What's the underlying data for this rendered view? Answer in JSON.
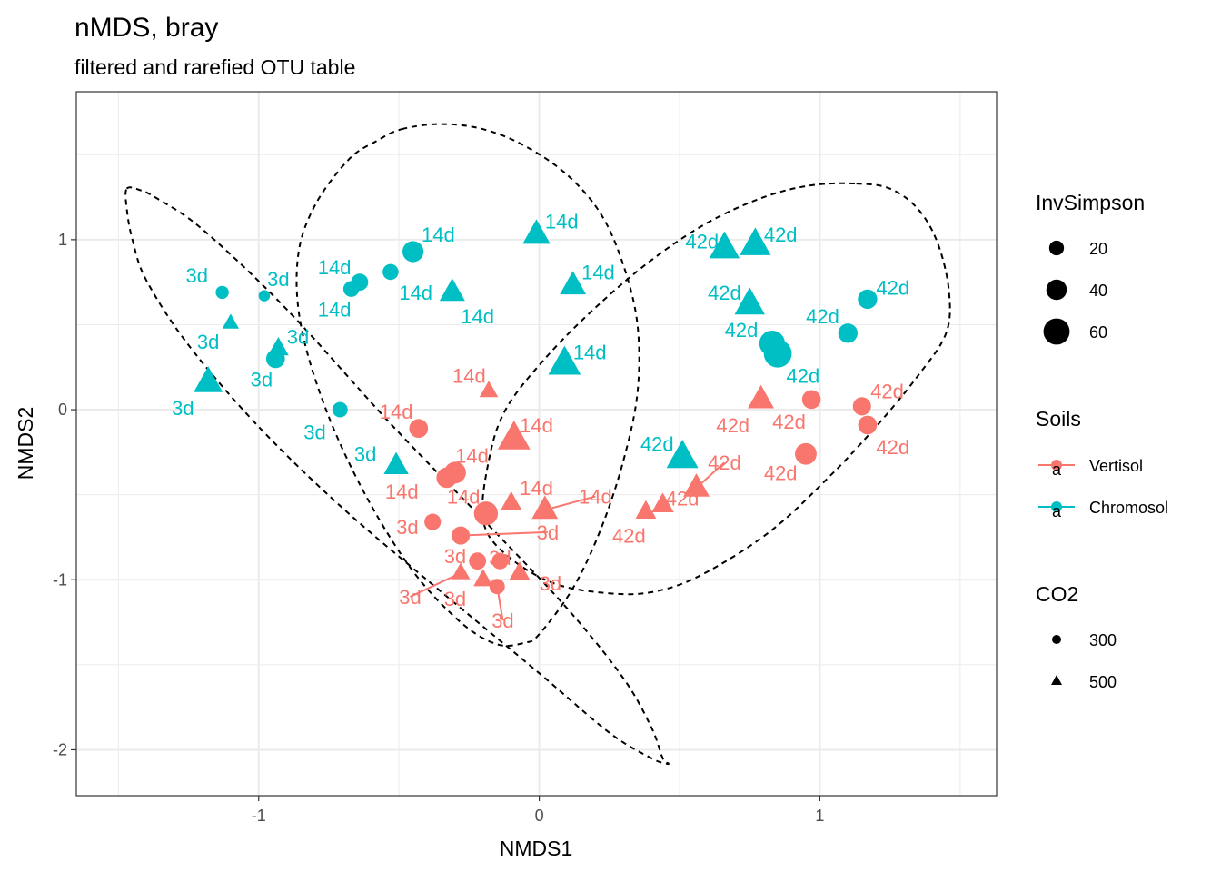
{
  "chart_data": {
    "type": "scatter",
    "title": "nMDS, bray",
    "subtitle": "filtered and rarefied OTU table",
    "xlabel": "NMDS1",
    "ylabel": "NMDS2",
    "xlim": [
      -1.65,
      1.63
    ],
    "ylim": [
      -2.27,
      1.87
    ],
    "xticks": [
      -1,
      0,
      1
    ],
    "yticks": [
      1,
      0,
      -1,
      -2
    ],
    "x_minor": [
      -1.5,
      -0.5,
      0.5,
      1.5
    ],
    "y_minor": [
      1.5,
      0.5,
      -0.5,
      -1.5
    ],
    "grid": true,
    "colors": {
      "Vertisol": "#F8766D",
      "Chromosol": "#00BFC4"
    },
    "legend": {
      "placement": "right",
      "invsimpson": {
        "title": "InvSimpson",
        "labels": [
          "20",
          "40",
          "60"
        ],
        "values": [
          20,
          40,
          60
        ]
      },
      "soils": {
        "title": "Soils",
        "labels": [
          "Vertisol",
          "Chromosol"
        ],
        "key_glyph": "a"
      },
      "co2": {
        "title": "CO2",
        "labels": [
          "300",
          "500"
        ],
        "shapes": [
          "circle",
          "triangle"
        ]
      }
    },
    "points": [
      {
        "x": -1.13,
        "y": 0.69,
        "soil": "Chromosol",
        "co2": "300",
        "inv": 14,
        "label": "3d",
        "lx": -1.22,
        "ly": 0.79
      },
      {
        "x": -0.98,
        "y": 0.67,
        "soil": "Chromosol",
        "co2": "300",
        "inv": 8,
        "label": "3d",
        "lx": -0.93,
        "ly": 0.77
      },
      {
        "x": -1.1,
        "y": 0.51,
        "soil": "Chromosol",
        "co2": "500",
        "inv": 16,
        "label": "3d",
        "lx": -1.18,
        "ly": 0.4
      },
      {
        "x": -1.18,
        "y": 0.16,
        "soil": "Chromosol",
        "co2": "500",
        "inv": 52,
        "label": "3d",
        "lx": -1.27,
        "ly": 0.01
      },
      {
        "x": -0.94,
        "y": 0.3,
        "soil": "Chromosol",
        "co2": "300",
        "inv": 34,
        "label": "3d",
        "lx": -0.86,
        "ly": 0.43
      },
      {
        "x": -0.93,
        "y": 0.36,
        "soil": "Chromosol",
        "co2": "500",
        "inv": 28,
        "label": "3d",
        "lx": -0.99,
        "ly": 0.18
      },
      {
        "x": -0.71,
        "y": 0.0,
        "soil": "Chromosol",
        "co2": "300",
        "inv": 22,
        "label": "3d",
        "lx": -0.8,
        "ly": -0.13
      },
      {
        "x": -0.51,
        "y": -0.33,
        "soil": "Chromosol",
        "co2": "500",
        "inv": 40,
        "label": "3d",
        "lx": -0.62,
        "ly": -0.26
      },
      {
        "x": -0.64,
        "y": 0.75,
        "soil": "Chromosol",
        "co2": "300",
        "inv": 28,
        "label": "14d",
        "lx": -0.73,
        "ly": 0.84
      },
      {
        "x": -0.67,
        "y": 0.71,
        "soil": "Chromosol",
        "co2": "300",
        "inv": 24,
        "label": "14d",
        "lx": -0.73,
        "ly": 0.59
      },
      {
        "x": -0.53,
        "y": 0.81,
        "soil": "Chromosol",
        "co2": "300",
        "inv": 24,
        "label": "14d",
        "lx": -0.44,
        "ly": 0.69
      },
      {
        "x": -0.45,
        "y": 0.93,
        "soil": "Chromosol",
        "co2": "300",
        "inv": 42,
        "label": "14d",
        "lx": -0.36,
        "ly": 1.03
      },
      {
        "x": -0.31,
        "y": 0.69,
        "soil": "Chromosol",
        "co2": "500",
        "inv": 42,
        "label": "14d",
        "lx": -0.22,
        "ly": 0.55
      },
      {
        "x": -0.01,
        "y": 1.03,
        "soil": "Chromosol",
        "co2": "500",
        "inv": 48,
        "label": "14d",
        "lx": 0.08,
        "ly": 1.11
      },
      {
        "x": 0.12,
        "y": 0.73,
        "soil": "Chromosol",
        "co2": "500",
        "inv": 44,
        "label": "14d",
        "lx": 0.21,
        "ly": 0.81
      },
      {
        "x": 0.09,
        "y": 0.27,
        "soil": "Chromosol",
        "co2": "500",
        "inv": 62,
        "label": "14d",
        "lx": 0.18,
        "ly": 0.34
      },
      {
        "x": 0.66,
        "y": 0.95,
        "soil": "Chromosol",
        "co2": "500",
        "inv": 56,
        "label": "42d",
        "lx": 0.58,
        "ly": 0.99
      },
      {
        "x": 0.77,
        "y": 0.97,
        "soil": "Chromosol",
        "co2": "500",
        "inv": 58,
        "label": "42d",
        "lx": 0.86,
        "ly": 1.03
      },
      {
        "x": 0.75,
        "y": 0.62,
        "soil": "Chromosol",
        "co2": "500",
        "inv": 56,
        "label": "42d",
        "lx": 0.66,
        "ly": 0.69
      },
      {
        "x": 0.83,
        "y": 0.39,
        "soil": "Chromosol",
        "co2": "300",
        "inv": 58,
        "label": "42d",
        "lx": 0.72,
        "ly": 0.47
      },
      {
        "x": 0.85,
        "y": 0.33,
        "soil": "Chromosol",
        "co2": "300",
        "inv": 66,
        "label": "42d",
        "lx": 0.94,
        "ly": 0.2
      },
      {
        "x": 1.1,
        "y": 0.45,
        "soil": "Chromosol",
        "co2": "300",
        "inv": 36,
        "label": "42d",
        "lx": 1.01,
        "ly": 0.55
      },
      {
        "x": 1.17,
        "y": 0.65,
        "soil": "Chromosol",
        "co2": "300",
        "inv": 36,
        "label": "42d",
        "lx": 1.26,
        "ly": 0.72
      },
      {
        "x": 0.51,
        "y": -0.28,
        "soil": "Chromosol",
        "co2": "500",
        "inv": 60,
        "label": "42d",
        "lx": 0.42,
        "ly": -0.2
      },
      {
        "x": -0.18,
        "y": 0.11,
        "soil": "Vertisol",
        "co2": "500",
        "inv": 22,
        "label": "14d",
        "lx": -0.25,
        "ly": 0.2
      },
      {
        "x": -0.43,
        "y": -0.11,
        "soil": "Vertisol",
        "co2": "300",
        "inv": 34,
        "label": "14d",
        "lx": -0.51,
        "ly": -0.01
      },
      {
        "x": -0.09,
        "y": -0.17,
        "soil": "Vertisol",
        "co2": "500",
        "inv": 62,
        "label": "14d",
        "lx": -0.01,
        "ly": -0.09
      },
      {
        "x": -0.33,
        "y": -0.4,
        "soil": "Vertisol",
        "co2": "300",
        "inv": 40,
        "label": "14d",
        "lx": -0.24,
        "ly": -0.27
      },
      {
        "x": -0.3,
        "y": -0.37,
        "soil": "Vertisol",
        "co2": "300",
        "inv": 44,
        "label": "14d",
        "lx": -0.49,
        "ly": -0.48
      },
      {
        "x": -0.19,
        "y": -0.61,
        "soil": "Vertisol",
        "co2": "300",
        "inv": 52,
        "label": "14d",
        "lx": -0.27,
        "ly": -0.51
      },
      {
        "x": -0.1,
        "y": -0.55,
        "soil": "Vertisol",
        "co2": "500",
        "inv": 30,
        "label": "14d",
        "lx": -0.01,
        "ly": -0.46
      },
      {
        "x": 0.02,
        "y": -0.59,
        "soil": "Vertisol",
        "co2": "500",
        "inv": 44,
        "label": "14d",
        "lx": 0.2,
        "ly": -0.51,
        "leader": true
      },
      {
        "x": -0.38,
        "y": -0.66,
        "soil": "Vertisol",
        "co2": "300",
        "inv": 26,
        "label": "3d",
        "lx": -0.47,
        "ly": -0.69
      },
      {
        "x": -0.28,
        "y": -0.74,
        "soil": "Vertisol",
        "co2": "300",
        "inv": 32,
        "label": "3d",
        "lx": 0.03,
        "ly": -0.72,
        "leader": true
      },
      {
        "x": -0.22,
        "y": -0.89,
        "soil": "Vertisol",
        "co2": "300",
        "inv": 28,
        "label": "3d",
        "lx": -0.3,
        "ly": -0.86
      },
      {
        "x": -0.14,
        "y": -0.89,
        "soil": "Vertisol",
        "co2": "300",
        "inv": 26,
        "label": "3d",
        "lx": -0.14,
        "ly": -0.87
      },
      {
        "x": -0.28,
        "y": -0.96,
        "soil": "Vertisol",
        "co2": "500",
        "inv": 22,
        "label": "3d",
        "lx": -0.46,
        "ly": -1.1,
        "leader": true
      },
      {
        "x": -0.2,
        "y": -1.0,
        "soil": "Vertisol",
        "co2": "500",
        "inv": 24,
        "label": "3d",
        "lx": -0.3,
        "ly": -1.11
      },
      {
        "x": -0.07,
        "y": -0.96,
        "soil": "Vertisol",
        "co2": "500",
        "inv": 28,
        "label": "3d",
        "lx": 0.04,
        "ly": -1.02
      },
      {
        "x": -0.15,
        "y": -1.04,
        "soil": "Vertisol",
        "co2": "300",
        "inv": 22,
        "label": "3d",
        "lx": -0.13,
        "ly": -1.24,
        "leader": true
      },
      {
        "x": 0.79,
        "y": 0.06,
        "soil": "Vertisol",
        "co2": "500",
        "inv": 44,
        "label": "42d",
        "lx": 0.69,
        "ly": -0.09
      },
      {
        "x": 0.97,
        "y": 0.06,
        "soil": "Vertisol",
        "co2": "300",
        "inv": 34,
        "label": "42d",
        "lx": 0.89,
        "ly": -0.07
      },
      {
        "x": 1.15,
        "y": 0.02,
        "soil": "Vertisol",
        "co2": "300",
        "inv": 32,
        "label": "42d",
        "lx": 1.24,
        "ly": 0.11
      },
      {
        "x": 1.17,
        "y": -0.09,
        "soil": "Vertisol",
        "co2": "300",
        "inv": 34,
        "label": "42d",
        "lx": 1.26,
        "ly": -0.22
      },
      {
        "x": 0.95,
        "y": -0.26,
        "soil": "Vertisol",
        "co2": "300",
        "inv": 44,
        "label": "42d",
        "lx": 0.86,
        "ly": -0.37
      },
      {
        "x": 0.56,
        "y": -0.46,
        "soil": "Vertisol",
        "co2": "500",
        "inv": 44,
        "label": "42d",
        "lx": 0.66,
        "ly": -0.31,
        "leader": true
      },
      {
        "x": 0.44,
        "y": -0.56,
        "soil": "Vertisol",
        "co2": "500",
        "inv": 32,
        "label": "42d",
        "lx": 0.51,
        "ly": -0.52
      },
      {
        "x": 0.38,
        "y": -0.6,
        "soil": "Vertisol",
        "co2": "500",
        "inv": 28,
        "label": "42d",
        "lx": 0.32,
        "ly": -0.74
      }
    ],
    "ellipses": [
      {
        "points": [
          [
            -1.47,
            1.3
          ],
          [
            -1.42,
            1.29
          ],
          [
            -1.36,
            1.24
          ],
          [
            -1.2,
            1.06
          ],
          [
            -0.9,
            0.59
          ],
          [
            -0.52,
            -0.1
          ],
          [
            -0.18,
            -0.68
          ],
          [
            0.1,
            -1.17
          ],
          [
            0.3,
            -1.58
          ],
          [
            0.4,
            -1.87
          ],
          [
            0.44,
            -2.05
          ],
          [
            0.46,
            -2.08
          ],
          [
            0.45,
            -2.08
          ],
          [
            0.4,
            -2.05
          ],
          [
            0.25,
            -1.9
          ],
          [
            0.0,
            -1.55
          ],
          [
            -0.35,
            -1.07
          ],
          [
            -0.7,
            -0.58
          ],
          [
            -1.0,
            -0.1
          ],
          [
            -1.25,
            0.38
          ],
          [
            -1.4,
            0.76
          ],
          [
            -1.45,
            1.0
          ],
          [
            -1.47,
            1.18
          ]
        ]
      },
      {
        "points": [
          [
            -0.49,
            1.65
          ],
          [
            -0.35,
            1.68
          ],
          [
            -0.2,
            1.65
          ],
          [
            -0.05,
            1.55
          ],
          [
            0.1,
            1.38
          ],
          [
            0.22,
            1.15
          ],
          [
            0.3,
            0.85
          ],
          [
            0.35,
            0.5
          ],
          [
            0.35,
            0.1
          ],
          [
            0.3,
            -0.3
          ],
          [
            0.22,
            -0.7
          ],
          [
            0.12,
            -1.05
          ],
          [
            0.0,
            -1.32
          ],
          [
            -0.05,
            -1.37
          ],
          [
            -0.15,
            -1.38
          ],
          [
            -0.28,
            -1.25
          ],
          [
            -0.45,
            -0.95
          ],
          [
            -0.62,
            -0.5
          ],
          [
            -0.76,
            0.0
          ],
          [
            -0.85,
            0.5
          ],
          [
            -0.86,
            0.9
          ],
          [
            -0.8,
            1.2
          ],
          [
            -0.68,
            1.47
          ],
          [
            -0.58,
            1.58
          ]
        ]
      },
      {
        "points": [
          [
            1.13,
            1.33
          ],
          [
            1.25,
            1.3
          ],
          [
            1.35,
            1.18
          ],
          [
            1.42,
            0.98
          ],
          [
            1.46,
            0.7
          ],
          [
            1.45,
            0.45
          ],
          [
            1.35,
            0.2
          ],
          [
            1.2,
            -0.1
          ],
          [
            1.03,
            -0.4
          ],
          [
            0.82,
            -0.72
          ],
          [
            0.58,
            -0.97
          ],
          [
            0.41,
            -1.07
          ],
          [
            0.25,
            -1.08
          ],
          [
            0.05,
            -1.02
          ],
          [
            -0.12,
            -0.85
          ],
          [
            -0.2,
            -0.65
          ],
          [
            -0.18,
            -0.3
          ],
          [
            -0.12,
            0.0
          ],
          [
            0.02,
            0.3
          ],
          [
            0.2,
            0.6
          ],
          [
            0.4,
            0.88
          ],
          [
            0.6,
            1.1
          ],
          [
            0.8,
            1.25
          ],
          [
            0.97,
            1.32
          ]
        ]
      }
    ]
  }
}
